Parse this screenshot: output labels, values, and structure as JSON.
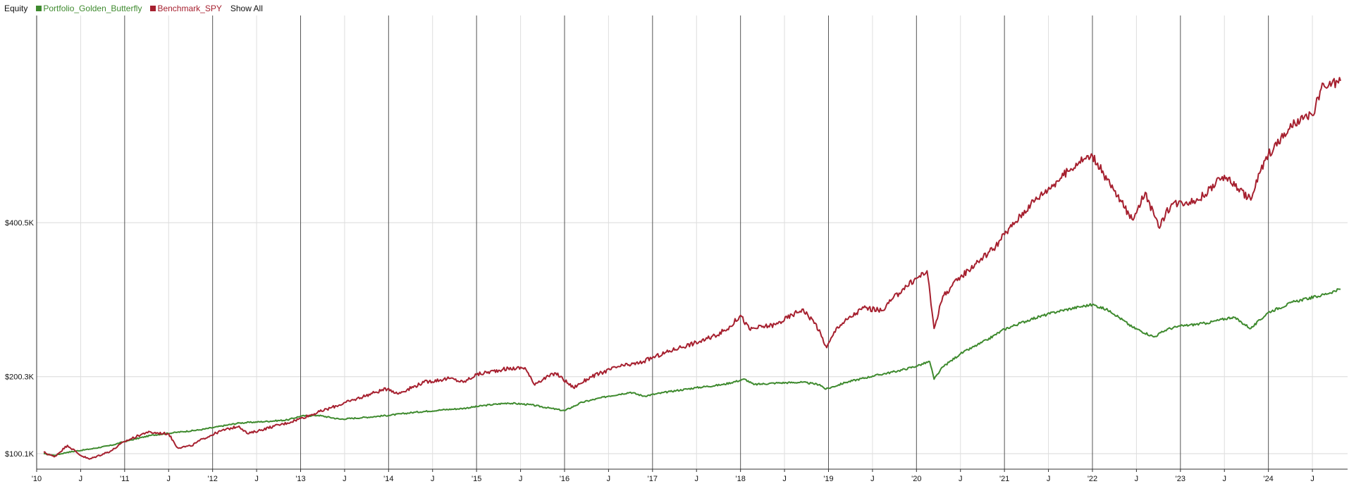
{
  "legend": {
    "title": "Equity",
    "series": [
      {
        "label": "Portfolio_Golden_Butterfly",
        "color": "#3e8a2e"
      },
      {
        "label": "Benchmark_SPY",
        "color": "#a6202f"
      }
    ],
    "show_all": "Show All"
  },
  "chart_data": {
    "type": "line",
    "title": "Equity",
    "ylabel": "",
    "xlabel": "",
    "x_range": [
      2010.0,
      2024.9
    ],
    "ylim": [
      80000,
      670000
    ],
    "y_ticks": [
      {
        "value": 100100,
        "label": "$100.1K"
      },
      {
        "value": 200300,
        "label": "$200.3K"
      },
      {
        "value": 400500,
        "label": "$400.5K"
      }
    ],
    "x_ticks": [
      {
        "value": 2010.0,
        "label": "'10"
      },
      {
        "value": 2010.5,
        "label": "J"
      },
      {
        "value": 2011.0,
        "label": "'11"
      },
      {
        "value": 2011.5,
        "label": "J"
      },
      {
        "value": 2012.0,
        "label": "'12"
      },
      {
        "value": 2012.5,
        "label": "J"
      },
      {
        "value": 2013.0,
        "label": "'13"
      },
      {
        "value": 2013.5,
        "label": "J"
      },
      {
        "value": 2014.0,
        "label": "'14"
      },
      {
        "value": 2014.5,
        "label": "J"
      },
      {
        "value": 2015.0,
        "label": "'15"
      },
      {
        "value": 2015.5,
        "label": "J"
      },
      {
        "value": 2016.0,
        "label": "'16"
      },
      {
        "value": 2016.5,
        "label": "J"
      },
      {
        "value": 2017.0,
        "label": "'17"
      },
      {
        "value": 2017.5,
        "label": "J"
      },
      {
        "value": 2018.0,
        "label": "'18"
      },
      {
        "value": 2018.5,
        "label": "J"
      },
      {
        "value": 2019.0,
        "label": "'19"
      },
      {
        "value": 2019.5,
        "label": "J"
      },
      {
        "value": 2020.0,
        "label": "'20"
      },
      {
        "value": 2020.5,
        "label": "J"
      },
      {
        "value": 2021.0,
        "label": "'21"
      },
      {
        "value": 2021.5,
        "label": "J"
      },
      {
        "value": 2022.0,
        "label": "'22"
      },
      {
        "value": 2022.5,
        "label": "J"
      },
      {
        "value": 2023.0,
        "label": "'23"
      },
      {
        "value": 2023.5,
        "label": "J"
      },
      {
        "value": 2024.0,
        "label": "'24"
      },
      {
        "value": 2024.5,
        "label": "J"
      }
    ],
    "grid": true,
    "legend_position": "top-left",
    "series": [
      {
        "name": "Portfolio_Golden_Butterfly",
        "color": "#3e8a2e",
        "points": [
          [
            2010.08,
            100000
          ],
          [
            2010.2,
            98000
          ],
          [
            2010.35,
            102000
          ],
          [
            2010.6,
            106000
          ],
          [
            2010.85,
            111000
          ],
          [
            2011.0,
            116000
          ],
          [
            2011.3,
            124000
          ],
          [
            2011.6,
            128000
          ],
          [
            2011.85,
            131000
          ],
          [
            2012.0,
            134000
          ],
          [
            2012.3,
            140000
          ],
          [
            2012.6,
            142000
          ],
          [
            2012.85,
            144000
          ],
          [
            2013.0,
            149000
          ],
          [
            2013.2,
            150000
          ],
          [
            2013.45,
            145000
          ],
          [
            2013.7,
            147000
          ],
          [
            2014.0,
            150000
          ],
          [
            2014.3,
            154000
          ],
          [
            2014.6,
            157000
          ],
          [
            2014.85,
            159000
          ],
          [
            2015.1,
            163000
          ],
          [
            2015.35,
            166000
          ],
          [
            2015.6,
            164000
          ],
          [
            2015.85,
            159000
          ],
          [
            2016.0,
            156000
          ],
          [
            2016.2,
            167000
          ],
          [
            2016.5,
            175000
          ],
          [
            2016.75,
            180000
          ],
          [
            2016.9,
            175000
          ],
          [
            2017.2,
            181000
          ],
          [
            2017.5,
            186000
          ],
          [
            2017.8,
            190000
          ],
          [
            2018.05,
            197000
          ],
          [
            2018.15,
            190000
          ],
          [
            2018.4,
            192000
          ],
          [
            2018.7,
            193000
          ],
          [
            2018.9,
            190000
          ],
          [
            2018.97,
            184000
          ],
          [
            2019.2,
            193000
          ],
          [
            2019.5,
            201000
          ],
          [
            2019.8,
            208000
          ],
          [
            2020.0,
            214000
          ],
          [
            2020.15,
            220000
          ],
          [
            2020.2,
            197000
          ],
          [
            2020.3,
            213000
          ],
          [
            2020.5,
            230000
          ],
          [
            2020.8,
            248000
          ],
          [
            2021.0,
            262000
          ],
          [
            2021.3,
            275000
          ],
          [
            2021.6,
            285000
          ],
          [
            2021.85,
            291000
          ],
          [
            2022.0,
            294000
          ],
          [
            2022.2,
            286000
          ],
          [
            2022.45,
            265000
          ],
          [
            2022.7,
            252000
          ],
          [
            2022.85,
            262000
          ],
          [
            2023.0,
            266000
          ],
          [
            2023.3,
            270000
          ],
          [
            2023.6,
            278000
          ],
          [
            2023.8,
            263000
          ],
          [
            2024.0,
            284000
          ],
          [
            2024.3,
            298000
          ],
          [
            2024.6,
            306000
          ],
          [
            2024.82,
            314000
          ]
        ]
      },
      {
        "name": "Benchmark_SPY",
        "color": "#a6202f",
        "points": [
          [
            2010.08,
            102000
          ],
          [
            2010.2,
            96000
          ],
          [
            2010.35,
            111000
          ],
          [
            2010.5,
            98000
          ],
          [
            2010.6,
            93000
          ],
          [
            2010.85,
            104000
          ],
          [
            2011.0,
            116000
          ],
          [
            2011.25,
            128000
          ],
          [
            2011.5,
            126000
          ],
          [
            2011.6,
            108000
          ],
          [
            2011.75,
            110000
          ],
          [
            2011.9,
            120000
          ],
          [
            2012.1,
            130000
          ],
          [
            2012.3,
            136000
          ],
          [
            2012.4,
            126000
          ],
          [
            2012.7,
            136000
          ],
          [
            2012.85,
            140000
          ],
          [
            2013.0,
            146000
          ],
          [
            2013.3,
            158000
          ],
          [
            2013.6,
            170000
          ],
          [
            2013.85,
            180000
          ],
          [
            2014.0,
            185000
          ],
          [
            2014.1,
            178000
          ],
          [
            2014.4,
            193000
          ],
          [
            2014.7,
            198000
          ],
          [
            2014.85,
            193000
          ],
          [
            2015.0,
            203000
          ],
          [
            2015.3,
            210000
          ],
          [
            2015.55,
            212000
          ],
          [
            2015.65,
            191000
          ],
          [
            2015.9,
            205000
          ],
          [
            2016.1,
            186000
          ],
          [
            2016.3,
            200000
          ],
          [
            2016.6,
            213000
          ],
          [
            2016.85,
            218000
          ],
          [
            2017.0,
            225000
          ],
          [
            2017.3,
            238000
          ],
          [
            2017.6,
            248000
          ],
          [
            2017.85,
            262000
          ],
          [
            2018.0,
            280000
          ],
          [
            2018.1,
            262000
          ],
          [
            2018.4,
            268000
          ],
          [
            2018.7,
            288000
          ],
          [
            2018.85,
            270000
          ],
          [
            2018.98,
            238000
          ],
          [
            2019.1,
            265000
          ],
          [
            2019.4,
            290000
          ],
          [
            2019.6,
            286000
          ],
          [
            2019.85,
            315000
          ],
          [
            2020.12,
            338000
          ],
          [
            2020.2,
            263000
          ],
          [
            2020.3,
            305000
          ],
          [
            2020.5,
            330000
          ],
          [
            2020.7,
            350000
          ],
          [
            2020.9,
            370000
          ],
          [
            2021.0,
            385000
          ],
          [
            2021.3,
            425000
          ],
          [
            2021.6,
            455000
          ],
          [
            2021.85,
            480000
          ],
          [
            2022.0,
            488000
          ],
          [
            2022.2,
            450000
          ],
          [
            2022.45,
            405000
          ],
          [
            2022.6,
            440000
          ],
          [
            2022.75,
            395000
          ],
          [
            2022.9,
            425000
          ],
          [
            2023.2,
            430000
          ],
          [
            2023.5,
            462000
          ],
          [
            2023.8,
            430000
          ],
          [
            2023.9,
            465000
          ],
          [
            2024.0,
            490000
          ],
          [
            2024.3,
            530000
          ],
          [
            2024.5,
            540000
          ],
          [
            2024.6,
            575000
          ],
          [
            2024.82,
            585000
          ]
        ]
      }
    ]
  }
}
